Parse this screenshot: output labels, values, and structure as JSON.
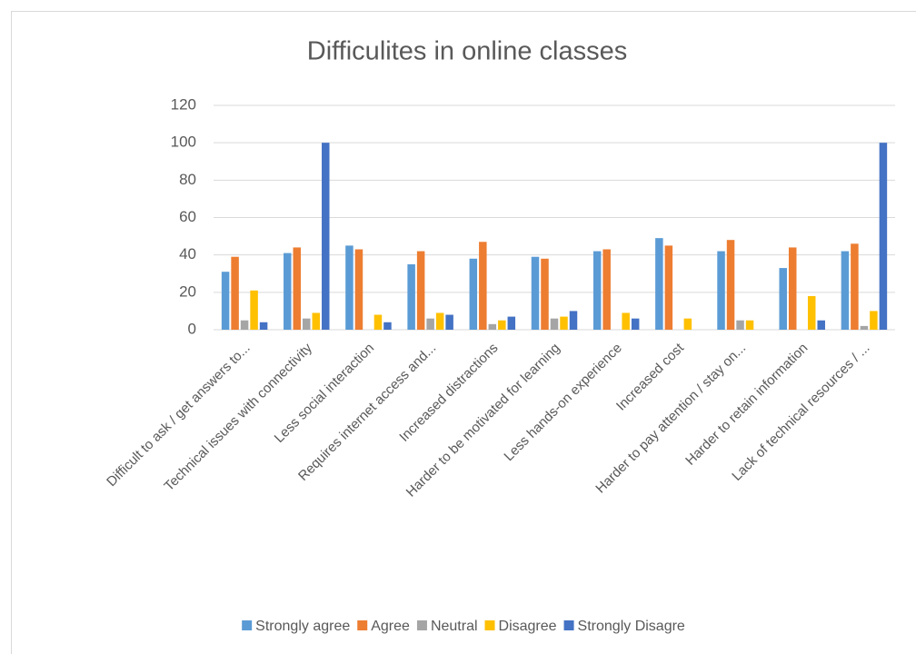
{
  "chart_data": {
    "type": "bar",
    "title": "Difficulites in online classes",
    "categories": [
      "Difficult to ask / get answers to...",
      "Technical issues with connectivity",
      "Less social interaction",
      "Requires internet access and...",
      "Increased distractions",
      "Harder to be motivated for learning",
      "Less hands-on experience",
      "Increased cost",
      "Harder to pay attention / stay on...",
      "Harder to retain information",
      "Lack of technical resources / ..."
    ],
    "series": [
      {
        "name": "Strongly agree",
        "color": "#5b9bd5",
        "values": [
          31,
          41,
          45,
          35,
          38,
          39,
          42,
          49,
          42,
          33,
          42
        ]
      },
      {
        "name": "Agree",
        "color": "#ed7d31",
        "values": [
          39,
          44,
          43,
          42,
          47,
          38,
          43,
          45,
          48,
          44,
          46
        ]
      },
      {
        "name": "Neutral",
        "color": "#a5a5a5",
        "values": [
          5,
          6,
          0,
          6,
          3,
          6,
          0,
          0,
          5,
          0,
          2
        ]
      },
      {
        "name": "Disagree",
        "color": "#ffc000",
        "values": [
          21,
          9,
          8,
          9,
          5,
          7,
          9,
          6,
          5,
          18,
          10
        ]
      },
      {
        "name": "Strongly Disagre",
        "color": "#4472c4",
        "values": [
          4,
          100,
          4,
          8,
          7,
          10,
          6,
          0,
          0,
          5,
          100
        ]
      }
    ],
    "ylim": [
      0,
      120
    ],
    "yticks": [
      0,
      20,
      40,
      60,
      80,
      100,
      120
    ],
    "grid": true,
    "legend": "bottom"
  }
}
